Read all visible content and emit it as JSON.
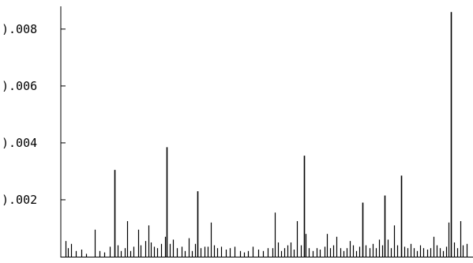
{
  "chart_data": {
    "type": "bar",
    "title": "",
    "xlabel": "",
    "ylabel": "",
    "ylim": [
      0,
      0.0088
    ],
    "xlim": [
      0,
      100
    ],
    "y_ticks": [
      {
        "value": 0.002,
        "label": ").002"
      },
      {
        "value": 0.004,
        "label": ").004"
      },
      {
        "value": 0.006,
        "label": ").006"
      },
      {
        "value": 0.008,
        "label": ").008"
      }
    ],
    "grid": false,
    "legend": "none",
    "bar_color": "#000000",
    "spikes": [
      {
        "x": 0.5,
        "y": 0.00055
      },
      {
        "x": 1.2,
        "y": 0.0003
      },
      {
        "x": 2.0,
        "y": 0.00045
      },
      {
        "x": 3.1,
        "y": 0.0002
      },
      {
        "x": 4.4,
        "y": 0.00025
      },
      {
        "x": 5.6,
        "y": 0.0001
      },
      {
        "x": 7.8,
        "y": 0.00095
      },
      {
        "x": 9.0,
        "y": 0.0002
      },
      {
        "x": 10.2,
        "y": 0.00015
      },
      {
        "x": 11.5,
        "y": 0.00035
      },
      {
        "x": 12.6,
        "y": 0.00305
      },
      {
        "x": 13.4,
        "y": 0.0004
      },
      {
        "x": 14.2,
        "y": 0.0002
      },
      {
        "x": 15.1,
        "y": 0.0003
      },
      {
        "x": 15.8,
        "y": 0.00125
      },
      {
        "x": 16.5,
        "y": 0.0002
      },
      {
        "x": 17.3,
        "y": 0.00035
      },
      {
        "x": 18.4,
        "y": 0.00095
      },
      {
        "x": 19.1,
        "y": 0.0004
      },
      {
        "x": 20.2,
        "y": 0.00055
      },
      {
        "x": 21.0,
        "y": 0.0011
      },
      {
        "x": 21.6,
        "y": 0.0005
      },
      {
        "x": 22.3,
        "y": 0.00035
      },
      {
        "x": 23.2,
        "y": 0.0003
      },
      {
        "x": 24.1,
        "y": 0.00045
      },
      {
        "x": 25.0,
        "y": 0.0007
      },
      {
        "x": 25.5,
        "y": 0.00385
      },
      {
        "x": 26.2,
        "y": 0.00045
      },
      {
        "x": 27.1,
        "y": 0.0006
      },
      {
        "x": 28.0,
        "y": 0.0003
      },
      {
        "x": 29.1,
        "y": 0.00035
      },
      {
        "x": 30.0,
        "y": 0.0002
      },
      {
        "x": 31.0,
        "y": 0.00065
      },
      {
        "x": 31.8,
        "y": 0.0002
      },
      {
        "x": 32.5,
        "y": 0.00045
      },
      {
        "x": 33.0,
        "y": 0.0023
      },
      {
        "x": 33.9,
        "y": 0.0003
      },
      {
        "x": 34.8,
        "y": 0.00035
      },
      {
        "x": 35.6,
        "y": 0.00035
      },
      {
        "x": 36.3,
        "y": 0.0012
      },
      {
        "x": 37.1,
        "y": 0.0004
      },
      {
        "x": 38.0,
        "y": 0.0003
      },
      {
        "x": 39.0,
        "y": 0.00035
      },
      {
        "x": 40.0,
        "y": 0.00025
      },
      {
        "x": 41.1,
        "y": 0.0003
      },
      {
        "x": 42.2,
        "y": 0.00035
      },
      {
        "x": 43.5,
        "y": 0.0002
      },
      {
        "x": 44.6,
        "y": 0.00015
      },
      {
        "x": 45.6,
        "y": 0.0002
      },
      {
        "x": 46.7,
        "y": 0.00035
      },
      {
        "x": 48.0,
        "y": 0.00025
      },
      {
        "x": 49.3,
        "y": 0.0002
      },
      {
        "x": 50.4,
        "y": 0.0003
      },
      {
        "x": 51.5,
        "y": 0.0003
      },
      {
        "x": 52.1,
        "y": 0.00155
      },
      {
        "x": 52.9,
        "y": 0.0005
      },
      {
        "x": 53.6,
        "y": 0.0002
      },
      {
        "x": 54.4,
        "y": 0.0003
      },
      {
        "x": 55.2,
        "y": 0.0004
      },
      {
        "x": 56.0,
        "y": 0.0005
      },
      {
        "x": 56.8,
        "y": 0.00025
      },
      {
        "x": 57.6,
        "y": 0.00125
      },
      {
        "x": 58.5,
        "y": 0.0004
      },
      {
        "x": 59.4,
        "y": 0.00355
      },
      {
        "x": 59.8,
        "y": 0.0008
      },
      {
        "x": 60.6,
        "y": 0.0003
      },
      {
        "x": 61.5,
        "y": 0.0002
      },
      {
        "x": 62.4,
        "y": 0.0003
      },
      {
        "x": 63.3,
        "y": 0.00025
      },
      {
        "x": 64.3,
        "y": 0.00035
      },
      {
        "x": 65.0,
        "y": 0.0008
      },
      {
        "x": 65.8,
        "y": 0.0003
      },
      {
        "x": 66.6,
        "y": 0.0004
      },
      {
        "x": 67.4,
        "y": 0.0007
      },
      {
        "x": 68.2,
        "y": 0.0003
      },
      {
        "x": 69.0,
        "y": 0.0002
      },
      {
        "x": 69.8,
        "y": 0.0003
      },
      {
        "x": 70.6,
        "y": 0.00055
      },
      {
        "x": 71.4,
        "y": 0.0004
      },
      {
        "x": 72.2,
        "y": 0.0002
      },
      {
        "x": 73.0,
        "y": 0.00035
      },
      {
        "x": 73.8,
        "y": 0.0019
      },
      {
        "x": 74.6,
        "y": 0.0004
      },
      {
        "x": 75.4,
        "y": 0.0003
      },
      {
        "x": 76.2,
        "y": 0.00045
      },
      {
        "x": 77.0,
        "y": 0.0003
      },
      {
        "x": 77.8,
        "y": 0.0006
      },
      {
        "x": 78.6,
        "y": 0.0004
      },
      {
        "x": 79.2,
        "y": 0.00215
      },
      {
        "x": 79.9,
        "y": 0.0006
      },
      {
        "x": 80.7,
        "y": 0.0003
      },
      {
        "x": 81.5,
        "y": 0.0011
      },
      {
        "x": 82.3,
        "y": 0.0004
      },
      {
        "x": 83.2,
        "y": 0.00285
      },
      {
        "x": 84.0,
        "y": 0.00035
      },
      {
        "x": 84.8,
        "y": 0.0003
      },
      {
        "x": 85.6,
        "y": 0.00045
      },
      {
        "x": 86.4,
        "y": 0.0003
      },
      {
        "x": 87.2,
        "y": 0.0002
      },
      {
        "x": 88.0,
        "y": 0.0004
      },
      {
        "x": 88.8,
        "y": 0.0003
      },
      {
        "x": 89.6,
        "y": 0.00025
      },
      {
        "x": 90.4,
        "y": 0.0003
      },
      {
        "x": 91.2,
        "y": 0.0007
      },
      {
        "x": 92.0,
        "y": 0.0004
      },
      {
        "x": 92.8,
        "y": 0.0003
      },
      {
        "x": 93.6,
        "y": 0.0002
      },
      {
        "x": 94.4,
        "y": 0.00035
      },
      {
        "x": 95.0,
        "y": 0.0012
      },
      {
        "x": 95.6,
        "y": 0.0086
      },
      {
        "x": 96.3,
        "y": 0.0005
      },
      {
        "x": 97.0,
        "y": 0.0003
      },
      {
        "x": 97.8,
        "y": 0.00125
      },
      {
        "x": 98.5,
        "y": 0.0004
      },
      {
        "x": 99.4,
        "y": 0.00045
      }
    ]
  }
}
